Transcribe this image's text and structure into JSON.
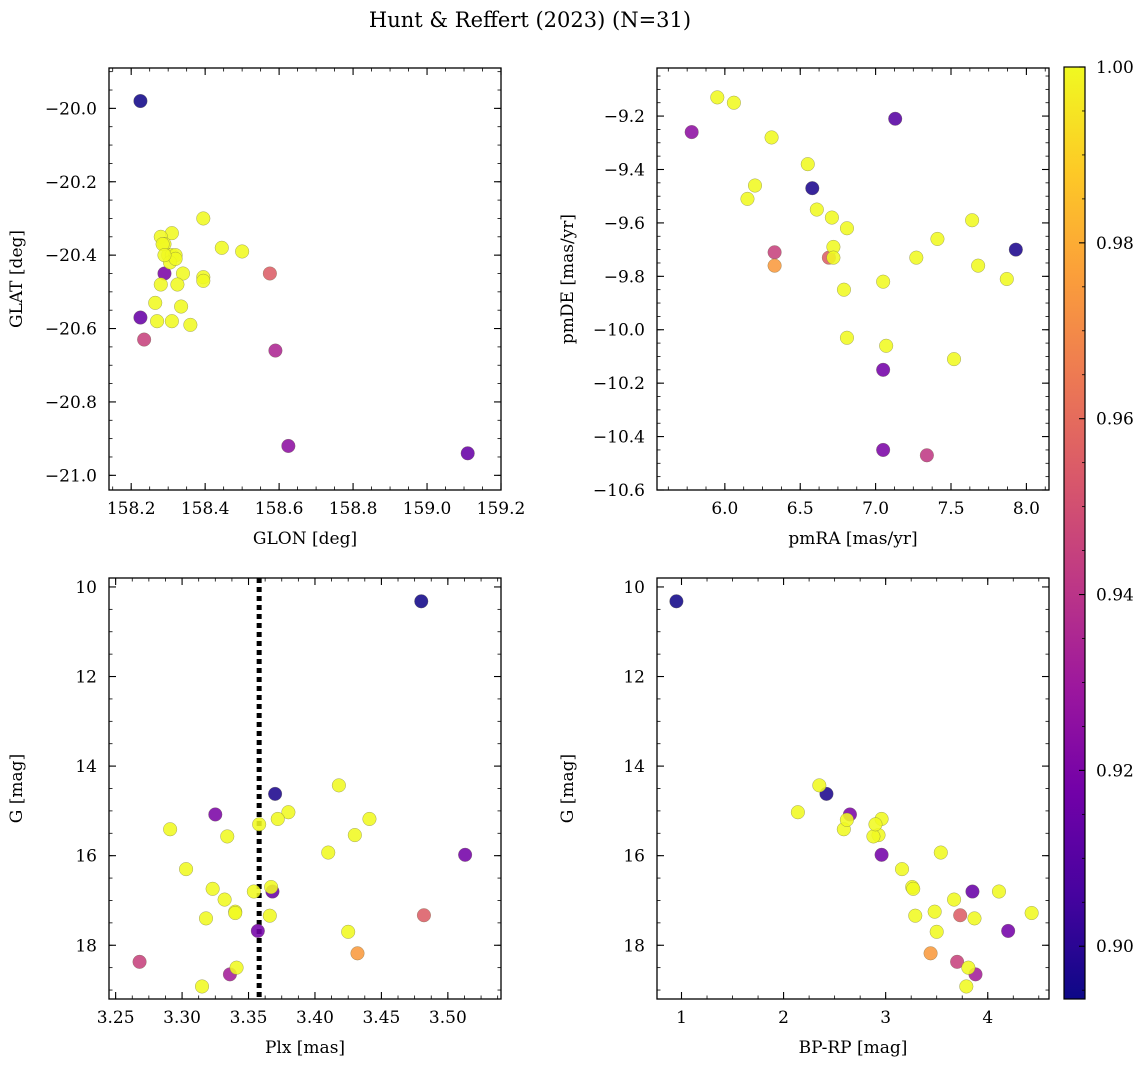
{
  "figure": {
    "title": "Hunt & Reffert (2023) (N=31)"
  },
  "colorbar": {
    "range": [
      0.894,
      1.0
    ],
    "ticks": [
      0.9,
      0.92,
      0.94,
      0.96,
      0.98,
      1.0
    ],
    "tick_labels": [
      "0.90",
      "0.92",
      "0.94",
      "0.96",
      "0.98",
      "1.00"
    ],
    "colormap": "plasma",
    "colormap_stops": [
      "#0d0887",
      "#46039f",
      "#7201a8",
      "#9c179e",
      "#bd3786",
      "#d8576b",
      "#ed7953",
      "#fb9f3a",
      "#fdca26",
      "#f0f921"
    ]
  },
  "chart_data": [
    {
      "type": "scatter",
      "id": "sky",
      "xlabel": "GLON [deg]",
      "ylabel": "GLAT [deg]",
      "xlim": [
        158.14,
        159.2
      ],
      "ylim": [
        -21.04,
        -19.89
      ],
      "y_inverted": false,
      "xticks": [
        158.2,
        158.4,
        158.6,
        158.8,
        159.0,
        159.2
      ],
      "xtick_labels": [
        "158.2",
        "158.4",
        "158.6",
        "158.8",
        "159.0",
        "159.2"
      ],
      "yticks": [
        -20.0,
        -20.2,
        -20.4,
        -20.6,
        -20.8,
        -21.0
      ],
      "ytick_labels": [
        "−20.0",
        "−20.2",
        "−20.4",
        "−20.6",
        "−20.8",
        "−21.0"
      ],
      "x": [
        158.225,
        159.11,
        158.625,
        158.59,
        158.575,
        158.225,
        158.235,
        158.29,
        158.395,
        158.31,
        158.28,
        158.29,
        158.3,
        158.31,
        158.32,
        158.305,
        158.32,
        158.285,
        158.29,
        158.34,
        158.445,
        158.5,
        158.395,
        158.395,
        158.28,
        158.325,
        158.265,
        158.335,
        158.27,
        158.31,
        158.36
      ],
      "y": [
        -19.98,
        -20.94,
        -20.92,
        -20.66,
        -20.45,
        -20.57,
        -20.63,
        -20.45,
        -20.3,
        -20.34,
        -20.35,
        -20.37,
        -20.4,
        -20.4,
        -20.4,
        -20.42,
        -20.41,
        -20.37,
        -20.4,
        -20.45,
        -20.38,
        -20.39,
        -20.46,
        -20.47,
        -20.48,
        -20.48,
        -20.53,
        -20.54,
        -20.58,
        -20.58,
        -20.59
      ],
      "c": [
        0.895,
        0.915,
        0.925,
        0.935,
        0.955,
        0.915,
        0.945,
        0.92,
        1.0,
        1.0,
        1.0,
        1.0,
        1.0,
        1.0,
        1.0,
        1.0,
        1.0,
        1.0,
        1.0,
        1.0,
        1.0,
        1.0,
        1.0,
        1.0,
        1.0,
        1.0,
        1.0,
        1.0,
        1.0,
        1.0,
        1.0
      ]
    },
    {
      "type": "scatter",
      "id": "pm",
      "xlabel": "pmRA [mas/yr]",
      "ylabel": "pmDE [mas/yr]",
      "xlim": [
        5.55,
        8.15
      ],
      "ylim": [
        -10.6,
        -9.02
      ],
      "y_inverted": false,
      "xticks": [
        6.0,
        6.5,
        7.0,
        7.5,
        8.0
      ],
      "xtick_labels": [
        "6.0",
        "6.5",
        "7.0",
        "7.5",
        "8.0"
      ],
      "yticks": [
        -9.2,
        -9.4,
        -9.6,
        -9.8,
        -10.0,
        -10.2,
        -10.4,
        -10.6
      ],
      "ytick_labels": [
        "−9.2",
        "−9.4",
        "−9.6",
        "−9.8",
        "−10.0",
        "−10.2",
        "−10.4",
        "−10.6"
      ],
      "x": [
        5.78,
        7.13,
        6.58,
        7.93,
        6.33,
        6.33,
        6.69,
        7.05,
        7.05,
        7.34,
        5.95,
        6.06,
        6.31,
        6.55,
        6.61,
        6.71,
        6.72,
        6.81,
        7.41,
        7.64,
        6.15,
        6.2,
        6.72,
        6.79,
        7.27,
        7.68,
        7.87,
        7.05,
        6.81,
        7.07,
        7.52
      ],
      "y": [
        -9.26,
        -9.21,
        -9.47,
        -9.7,
        -9.71,
        -9.76,
        -9.73,
        -10.15,
        -10.45,
        -10.47,
        -9.13,
        -9.15,
        -9.28,
        -9.38,
        -9.55,
        -9.58,
        -9.69,
        -9.62,
        -9.66,
        -9.59,
        -9.51,
        -9.46,
        -9.73,
        -9.85,
        -9.73,
        -9.76,
        -9.81,
        -9.82,
        -10.03,
        -10.06,
        -10.11
      ],
      "c": [
        0.925,
        0.91,
        0.897,
        0.897,
        0.945,
        0.975,
        0.955,
        0.918,
        0.92,
        0.942,
        1.0,
        1.0,
        1.0,
        1.0,
        1.0,
        1.0,
        1.0,
        1.0,
        1.0,
        1.0,
        1.0,
        1.0,
        1.0,
        1.0,
        1.0,
        1.0,
        1.0,
        1.0,
        1.0,
        1.0,
        1.0
      ]
    },
    {
      "type": "scatter",
      "id": "plx_g",
      "xlabel": "Plx [mas]",
      "ylabel": "G [mag]",
      "xlim": [
        3.245,
        3.54
      ],
      "ylim": [
        19.2,
        9.8
      ],
      "y_inverted": true,
      "xticks": [
        3.25,
        3.3,
        3.35,
        3.4,
        3.45,
        3.5
      ],
      "xtick_labels": [
        "3.25",
        "3.30",
        "3.35",
        "3.40",
        "3.45",
        "3.50"
      ],
      "yticks": [
        10,
        12,
        14,
        16,
        18
      ],
      "ytick_labels": [
        "10",
        "12",
        "14",
        "16",
        "18"
      ],
      "vline": {
        "x": 3.358,
        "style": "dotted"
      },
      "x": [
        3.48,
        3.37,
        3.513,
        3.325,
        3.368,
        3.357,
        3.336,
        3.268,
        3.482,
        3.432,
        3.418,
        3.38,
        3.372,
        3.291,
        3.441,
        3.43,
        3.334,
        3.358,
        3.41,
        3.303,
        3.323,
        3.367,
        3.354,
        3.332,
        3.34,
        3.34,
        3.366,
        3.318,
        3.425,
        3.341,
        3.315
      ],
      "y": [
        10.32,
        14.62,
        15.98,
        15.08,
        16.8,
        17.68,
        18.65,
        18.37,
        17.33,
        18.18,
        14.43,
        15.03,
        15.18,
        15.41,
        15.18,
        15.54,
        15.57,
        15.3,
        15.93,
        16.3,
        16.74,
        16.7,
        16.8,
        16.98,
        17.25,
        17.28,
        17.34,
        17.4,
        17.7,
        18.5,
        18.92
      ],
      "c": [
        0.895,
        0.897,
        0.918,
        0.92,
        0.915,
        0.918,
        0.932,
        0.945,
        0.955,
        0.975,
        1.0,
        1.0,
        1.0,
        1.0,
        1.0,
        1.0,
        1.0,
        1.0,
        1.0,
        1.0,
        1.0,
        1.0,
        1.0,
        1.0,
        1.0,
        1.0,
        1.0,
        1.0,
        1.0,
        1.0,
        1.0
      ]
    },
    {
      "type": "scatter",
      "id": "cmd",
      "xlabel": "BP-RP [mag]",
      "ylabel": "G [mag]",
      "xlim": [
        0.76,
        4.6
      ],
      "ylim": [
        19.2,
        9.8
      ],
      "y_inverted": true,
      "xticks": [
        1,
        2,
        3,
        4
      ],
      "xtick_labels": [
        "1",
        "2",
        "3",
        "4"
      ],
      "yticks": [
        10,
        12,
        14,
        16,
        18
      ],
      "ytick_labels": [
        "10",
        "12",
        "14",
        "16",
        "18"
      ],
      "x": [
        0.95,
        2.42,
        2.65,
        2.96,
        3.85,
        4.2,
        3.88,
        3.7,
        3.73,
        3.44,
        2.35,
        2.14,
        2.59,
        2.62,
        2.96,
        2.93,
        2.88,
        2.9,
        3.54,
        3.16,
        3.26,
        3.27,
        3.48,
        3.67,
        3.87,
        4.43,
        4.11,
        3.29,
        3.5,
        3.81,
        3.79
      ],
      "y": [
        10.32,
        14.62,
        15.08,
        15.98,
        16.8,
        17.68,
        18.65,
        18.37,
        17.33,
        18.18,
        14.43,
        15.03,
        15.41,
        15.2,
        15.18,
        15.54,
        15.57,
        15.3,
        15.93,
        16.3,
        16.7,
        16.74,
        17.25,
        16.98,
        17.4,
        17.28,
        16.8,
        17.34,
        17.7,
        18.5,
        18.92
      ],
      "c": [
        0.895,
        0.897,
        0.92,
        0.918,
        0.915,
        0.918,
        0.932,
        0.945,
        0.955,
        0.975,
        1.0,
        1.0,
        1.0,
        1.0,
        1.0,
        1.0,
        1.0,
        1.0,
        1.0,
        1.0,
        1.0,
        1.0,
        1.0,
        1.0,
        1.0,
        1.0,
        1.0,
        1.0,
        1.0,
        1.0,
        1.0
      ]
    }
  ]
}
